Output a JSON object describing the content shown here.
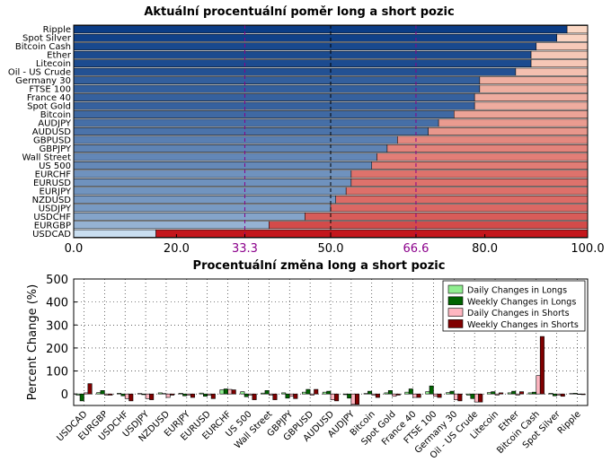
{
  "chart_data": [
    {
      "type": "bar",
      "orientation": "horizontal",
      "stacked": true,
      "title": "Aktuální procentuální poměr long a short pozic",
      "categories": [
        "Ripple",
        "Spot Silver",
        "Bitcoin Cash",
        "Ether",
        "Litecoin",
        "Oil - US Crude",
        "Germany 30",
        "FTSE 100",
        "France 40",
        "Spot Gold",
        "Bitcoin",
        "AUDJPY",
        "AUDUSD",
        "GBPUSD",
        "GBPJPY",
        "Wall Street",
        "US 500",
        "EURCHF",
        "EURUSD",
        "EURJPY",
        "NZDUSD",
        "USDJPY",
        "USDCHF",
        "EURGBP",
        "USDCAD"
      ],
      "series": [
        {
          "name": "",
          "values": [
            96,
            94,
            90,
            89,
            89,
            86,
            79,
            79,
            78,
            78,
            74,
            71,
            69,
            63,
            61,
            59,
            58,
            54,
            54,
            53,
            51,
            50,
            45,
            38,
            16
          ]
        },
        {
          "name": "",
          "values": [
            4,
            6,
            10,
            11,
            11,
            14,
            21,
            21,
            22,
            22,
            26,
            29,
            31,
            37,
            39,
            41,
            42,
            46,
            46,
            47,
            49,
            50,
            55,
            62,
            84
          ]
        }
      ],
      "xlim": [
        0,
        100
      ],
      "xticks": [
        "0.0",
        "20.0",
        "33.3",
        "50.0",
        "66.6",
        "80.0",
        "100.0"
      ],
      "xtick_values": [
        0,
        20,
        33.3,
        50,
        66.6,
        80,
        100
      ],
      "reference_lines": [
        33.3,
        50,
        66.6
      ],
      "long_color": "#1a56a0",
      "short_color": "#e0452f"
    },
    {
      "type": "bar",
      "title": "Procentuální změna long a short pozic",
      "ylabel": "Percent Change (%)",
      "categories": [
        "USDCAD",
        "EURGBP",
        "USDCHF",
        "USDJPY",
        "NZDUSD",
        "EURJPY",
        "EURUSD",
        "EURCHF",
        "US 500",
        "Wall Street",
        "GBPJPY",
        "GBPUSD",
        "AUDUSD",
        "AUDJPY",
        "Bitcoin",
        "Spot Gold",
        "France 40",
        "FTSE 100",
        "Germany 30",
        "Oil - US Crude",
        "Litecoin",
        "Ether",
        "Bitcoin Cash",
        "Spot Silver",
        "Ripple"
      ],
      "ylim": [
        -50,
        500
      ],
      "yticks": [
        0,
        100,
        200,
        300,
        400,
        500
      ],
      "legend_position": "top-right",
      "series": [
        {
          "name": "Daily Changes in Longs",
          "color": "#90ee90",
          "values": [
            -5,
            6,
            3,
            2,
            5,
            3,
            4,
            18,
            10,
            4,
            5,
            8,
            8,
            -3,
            2,
            5,
            8,
            10,
            6,
            -5,
            6,
            5,
            5,
            3,
            2
          ]
        },
        {
          "name": "Weekly Changes in Longs",
          "color": "#006400",
          "values": [
            -30,
            15,
            -8,
            -3,
            2,
            -8,
            -10,
            22,
            -12,
            15,
            -18,
            20,
            12,
            -18,
            12,
            15,
            22,
            35,
            12,
            -20,
            10,
            12,
            8,
            -8,
            3
          ]
        },
        {
          "name": "Daily Changes in Shorts",
          "color": "#ffb6c1",
          "values": [
            5,
            -5,
            -20,
            -20,
            -15,
            -5,
            -5,
            20,
            -5,
            -5,
            -10,
            -5,
            -25,
            -45,
            -5,
            -10,
            -15,
            -10,
            -25,
            -35,
            -5,
            -5,
            80,
            -5,
            -2
          ]
        },
        {
          "name": "Weekly Changes in Shorts",
          "color": "#800000",
          "values": [
            45,
            -5,
            -30,
            -25,
            -5,
            -15,
            -20,
            18,
            -25,
            -25,
            -20,
            20,
            -30,
            -45,
            -15,
            -5,
            -15,
            -15,
            -30,
            -35,
            5,
            10,
            250,
            -10,
            -3
          ]
        }
      ]
    }
  ]
}
